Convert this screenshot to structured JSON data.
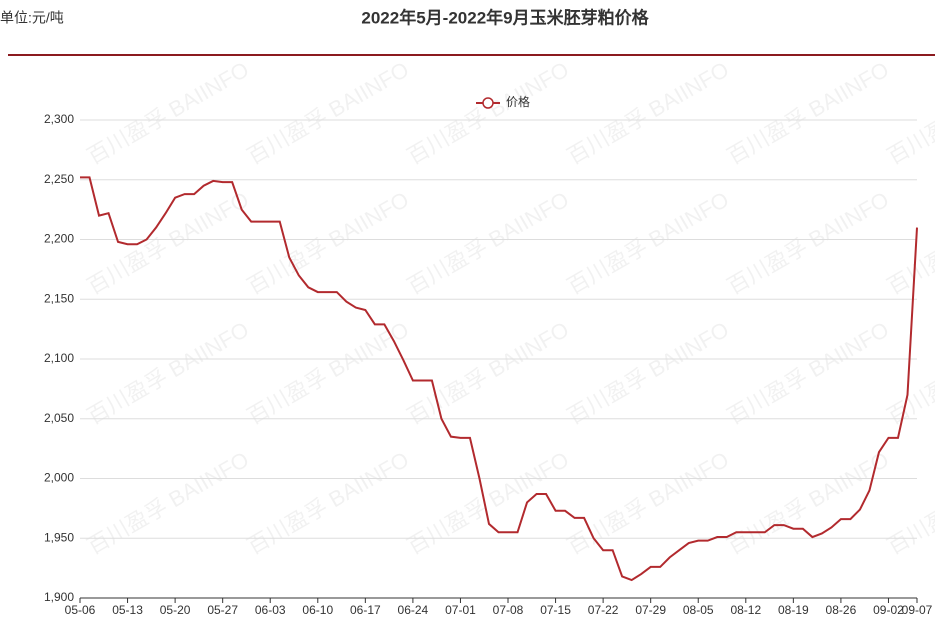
{
  "header": {
    "unit": "单位:元/吨",
    "title": "2022年5月-2022年9月玉米胚芽粕价格"
  },
  "watermark": "百川盈孚 BAIINFO",
  "chart_data": {
    "type": "line",
    "categories": [
      "05-06",
      null,
      null,
      null,
      null,
      "05-13",
      null,
      null,
      null,
      null,
      "05-20",
      null,
      null,
      null,
      null,
      "05-27",
      null,
      null,
      null,
      null,
      "06-03",
      null,
      null,
      null,
      null,
      "06-10",
      null,
      null,
      null,
      null,
      "06-17",
      null,
      null,
      null,
      null,
      "06-24",
      null,
      null,
      null,
      null,
      "07-01",
      null,
      null,
      null,
      null,
      "07-08",
      null,
      null,
      null,
      null,
      "07-15",
      null,
      null,
      null,
      null,
      "07-22",
      null,
      null,
      null,
      null,
      "07-29",
      null,
      null,
      null,
      null,
      "08-05",
      null,
      null,
      null,
      null,
      "08-12",
      null,
      null,
      null,
      null,
      "08-19",
      null,
      null,
      null,
      null,
      "08-26",
      null,
      null,
      null,
      null,
      "09-02",
      null,
      null,
      "09-07"
    ],
    "series": [
      {
        "name": "价格",
        "color": "#b22a2e",
        "values": [
          2252,
          2252,
          2220,
          2222,
          2198,
          2196,
          2196,
          2200,
          2210,
          2222,
          2235,
          2238,
          2238,
          2245,
          2249,
          2248,
          2248,
          2225,
          2215,
          2215,
          2215,
          2215,
          2185,
          2170,
          2160,
          2156,
          2156,
          2156,
          2148,
          2143,
          2141,
          2129,
          2129,
          2115,
          2099,
          2082,
          2082,
          2082,
          2050,
          2035,
          2034,
          2034,
          2000,
          1962,
          1955,
          1955,
          1955,
          1980,
          1987,
          1987,
          1973,
          1973,
          1967,
          1967,
          1950,
          1940,
          1940,
          1918,
          1915,
          1920,
          1926,
          1926,
          1934,
          1940,
          1946,
          1948,
          1948,
          1951,
          1951,
          1955,
          1955,
          1955,
          1955,
          1961,
          1961,
          1958,
          1958,
          1951,
          1954,
          1959,
          1966,
          1966,
          1974,
          1990,
          2022,
          2034,
          2034,
          2070,
          2210
        ]
      }
    ],
    "ylim": [
      1900,
      2300
    ],
    "yticks": [
      {
        "value": 1900,
        "label": "1,900"
      },
      {
        "value": 1950,
        "label": "1,950"
      },
      {
        "value": 2000,
        "label": "2,000"
      },
      {
        "value": 2050,
        "label": "2,050"
      },
      {
        "value": 2100,
        "label": "2,100"
      },
      {
        "value": 2150,
        "label": "2,150"
      },
      {
        "value": 2200,
        "label": "2,200"
      },
      {
        "value": 2250,
        "label": "2,250"
      },
      {
        "value": 2300,
        "label": "2,300"
      }
    ],
    "grid": true,
    "legend": "top"
  }
}
